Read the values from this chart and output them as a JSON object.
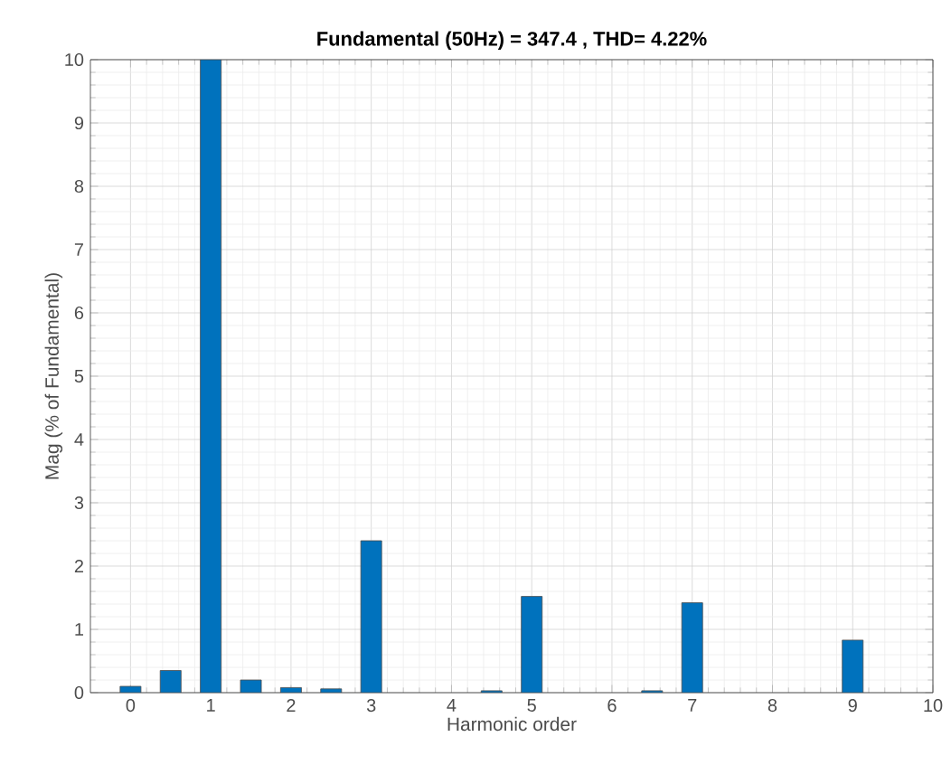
{
  "chart_data": {
    "type": "bar",
    "title": "Fundamental (50Hz) = 347.4 , THD= 4.22%",
    "xlabel": "Harmonic order",
    "ylabel": "Mag (% of Fundamental)",
    "x": [
      0,
      0.5,
      1,
      1.5,
      2,
      2.5,
      3,
      4.5,
      5,
      6.5,
      7,
      9
    ],
    "values": [
      0.1,
      0.35,
      10,
      0.2,
      0.08,
      0.06,
      2.4,
      0.03,
      1.52,
      0.03,
      1.42,
      0.83
    ],
    "color": "#0072bd",
    "xlim": [
      -0.5,
      10
    ],
    "ylim": [
      0,
      10
    ],
    "xticks": [
      0,
      1,
      2,
      3,
      4,
      5,
      6,
      7,
      8,
      9,
      10
    ],
    "yticks": [
      0,
      1,
      2,
      3,
      4,
      5,
      6,
      7,
      8,
      9,
      10
    ],
    "grid": true
  }
}
